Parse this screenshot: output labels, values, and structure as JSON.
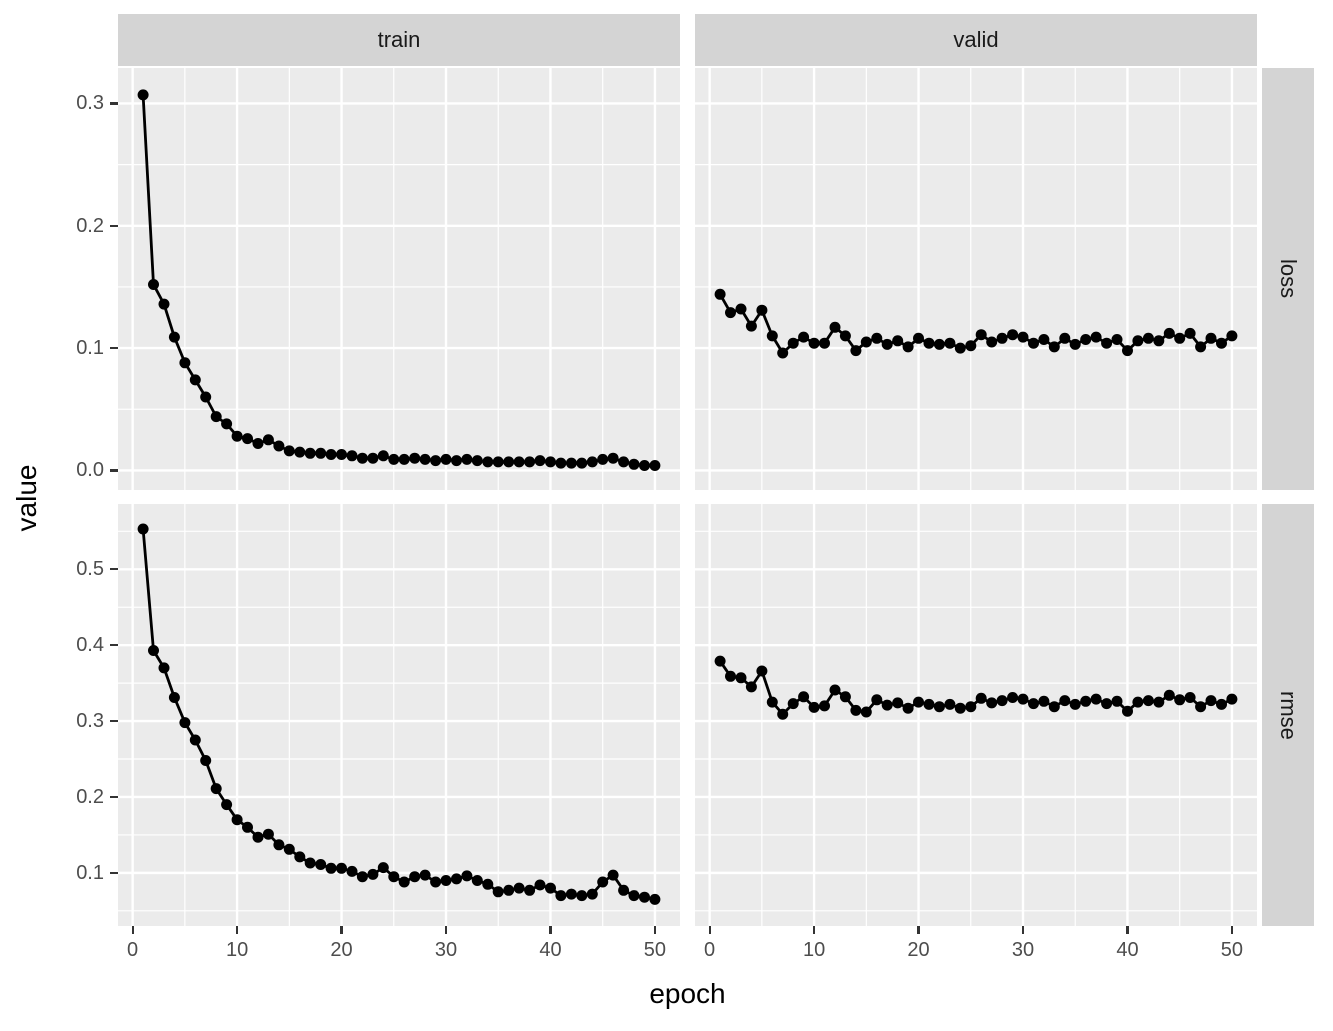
{
  "chart_data": {
    "type": "line",
    "title": "",
    "x_label": "epoch",
    "y_label": "value",
    "facets": {
      "cols": [
        "train",
        "valid"
      ],
      "rows": [
        "loss",
        "rmse"
      ]
    },
    "x": [
      1,
      2,
      3,
      4,
      5,
      6,
      7,
      8,
      9,
      10,
      11,
      12,
      13,
      14,
      15,
      16,
      17,
      18,
      19,
      20,
      21,
      22,
      23,
      24,
      25,
      26,
      27,
      28,
      29,
      30,
      31,
      32,
      33,
      34,
      35,
      36,
      37,
      38,
      39,
      40,
      41,
      42,
      43,
      44,
      45,
      46,
      47,
      48,
      49,
      50
    ],
    "series": [
      {
        "col": "train",
        "row": "loss",
        "values": [
          0.307,
          0.152,
          0.136,
          0.109,
          0.088,
          0.074,
          0.06,
          0.044,
          0.038,
          0.028,
          0.026,
          0.022,
          0.025,
          0.02,
          0.016,
          0.015,
          0.014,
          0.014,
          0.013,
          0.013,
          0.012,
          0.01,
          0.01,
          0.012,
          0.009,
          0.009,
          0.01,
          0.009,
          0.008,
          0.009,
          0.008,
          0.009,
          0.008,
          0.007,
          0.007,
          0.007,
          0.007,
          0.007,
          0.008,
          0.007,
          0.006,
          0.006,
          0.006,
          0.007,
          0.009,
          0.01,
          0.007,
          0.005,
          0.004,
          0.004
        ]
      },
      {
        "col": "valid",
        "row": "loss",
        "values": [
          0.144,
          0.129,
          0.132,
          0.118,
          0.131,
          0.11,
          0.096,
          0.104,
          0.109,
          0.104,
          0.104,
          0.117,
          0.11,
          0.098,
          0.105,
          0.108,
          0.103,
          0.106,
          0.101,
          0.108,
          0.104,
          0.103,
          0.104,
          0.1,
          0.102,
          0.111,
          0.105,
          0.108,
          0.111,
          0.109,
          0.104,
          0.107,
          0.101,
          0.108,
          0.103,
          0.107,
          0.109,
          0.104,
          0.107,
          0.098,
          0.106,
          0.108,
          0.106,
          0.112,
          0.108,
          0.112,
          0.101,
          0.108,
          0.104,
          0.11
        ]
      },
      {
        "col": "train",
        "row": "rmse",
        "values": [
          0.553,
          0.393,
          0.37,
          0.331,
          0.298,
          0.275,
          0.248,
          0.211,
          0.19,
          0.17,
          0.16,
          0.147,
          0.151,
          0.137,
          0.131,
          0.121,
          0.113,
          0.111,
          0.106,
          0.106,
          0.102,
          0.095,
          0.098,
          0.107,
          0.095,
          0.088,
          0.095,
          0.097,
          0.088,
          0.09,
          0.092,
          0.096,
          0.09,
          0.085,
          0.075,
          0.077,
          0.08,
          0.077,
          0.084,
          0.08,
          0.07,
          0.072,
          0.07,
          0.072,
          0.088,
          0.097,
          0.077,
          0.07,
          0.068,
          0.065
        ]
      },
      {
        "col": "valid",
        "row": "rmse",
        "values": [
          0.379,
          0.359,
          0.357,
          0.345,
          0.366,
          0.325,
          0.309,
          0.323,
          0.332,
          0.318,
          0.32,
          0.341,
          0.332,
          0.314,
          0.312,
          0.328,
          0.321,
          0.324,
          0.317,
          0.325,
          0.322,
          0.319,
          0.322,
          0.317,
          0.319,
          0.33,
          0.324,
          0.327,
          0.331,
          0.329,
          0.323,
          0.326,
          0.319,
          0.327,
          0.322,
          0.326,
          0.329,
          0.323,
          0.326,
          0.313,
          0.325,
          0.327,
          0.325,
          0.334,
          0.328,
          0.331,
          0.319,
          0.327,
          0.322,
          0.329
        ]
      }
    ],
    "axes": {
      "x": {
        "lim": [
          -1.4,
          52.4
        ],
        "major": [
          0,
          10,
          20,
          30,
          40,
          50
        ],
        "minor": [
          5,
          15,
          25,
          35,
          45
        ],
        "tick_labels": [
          "0",
          "10",
          "20",
          "30",
          "40",
          "50"
        ]
      },
      "y_loss": {
        "lim": [
          -0.016,
          0.329
        ],
        "major": [
          0.0,
          0.1,
          0.2,
          0.3
        ],
        "minor": [
          0.05,
          0.15,
          0.25
        ],
        "tick_labels": [
          "0.0",
          "0.1",
          "0.2",
          "0.3"
        ]
      },
      "y_rmse": {
        "lim": [
          0.03,
          0.586
        ],
        "major": [
          0.1,
          0.2,
          0.3,
          0.4,
          0.5
        ],
        "minor": [
          0.05,
          0.15,
          0.25,
          0.35,
          0.45,
          0.55
        ],
        "tick_labels": [
          "0.1",
          "0.2",
          "0.3",
          "0.4",
          "0.5"
        ]
      }
    },
    "legend": "none",
    "grid": "on",
    "style": {
      "point_color": "#000000",
      "line_color": "#000000",
      "panel_bg": "#EBEBEB",
      "grid_color": "#FFFFFF",
      "strip_bg": "#D4D4D4",
      "tick_label_color": "#4D4D4D",
      "axis_title_color": "#000000"
    }
  }
}
